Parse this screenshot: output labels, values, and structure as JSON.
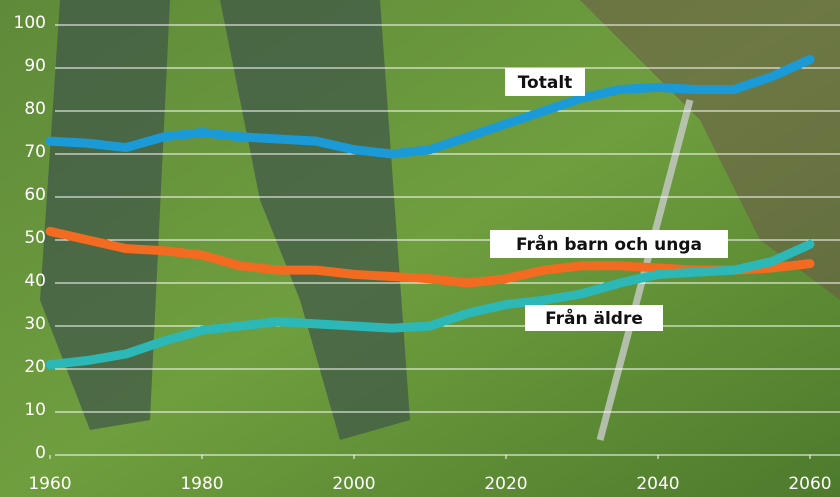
{
  "chart_data": {
    "type": "line",
    "x": [
      1960,
      1965,
      1970,
      1975,
      1980,
      1985,
      1990,
      1995,
      2000,
      2005,
      2010,
      2015,
      2020,
      2025,
      2030,
      2035,
      2040,
      2045,
      2050,
      2055,
      2060
    ],
    "series": [
      {
        "name": "Totalt",
        "color": "#1b9ad8",
        "values": [
          73,
          72.5,
          71.5,
          74,
          75,
          74,
          73.5,
          73,
          71,
          70,
          71,
          74,
          77,
          80,
          83,
          85,
          85.5,
          85,
          85,
          88,
          92
        ]
      },
      {
        "name": "Från barn och unga",
        "color": "#f26b21",
        "values": [
          52,
          50,
          48,
          47.5,
          46.5,
          44,
          43,
          43,
          42,
          41.5,
          41,
          40,
          41,
          43,
          44,
          44,
          43.5,
          43,
          43,
          43.5,
          44.5
        ]
      },
      {
        "name": "Från äldre",
        "color": "#2bb8b6",
        "values": [
          21,
          22,
          23.5,
          26.5,
          29,
          30,
          31,
          30.5,
          30,
          29.5,
          30,
          33,
          35,
          36,
          37.5,
          40,
          42,
          42.5,
          43,
          45,
          49
        ]
      }
    ],
    "xlim": [
      1960,
      2060
    ],
    "xticks": [
      1960,
      1980,
      2000,
      2020,
      2040,
      2060
    ],
    "ylim": [
      0,
      100
    ],
    "yticks": [
      0,
      10,
      20,
      30,
      40,
      50,
      60,
      70,
      80,
      90,
      100
    ],
    "grid": true
  }
}
